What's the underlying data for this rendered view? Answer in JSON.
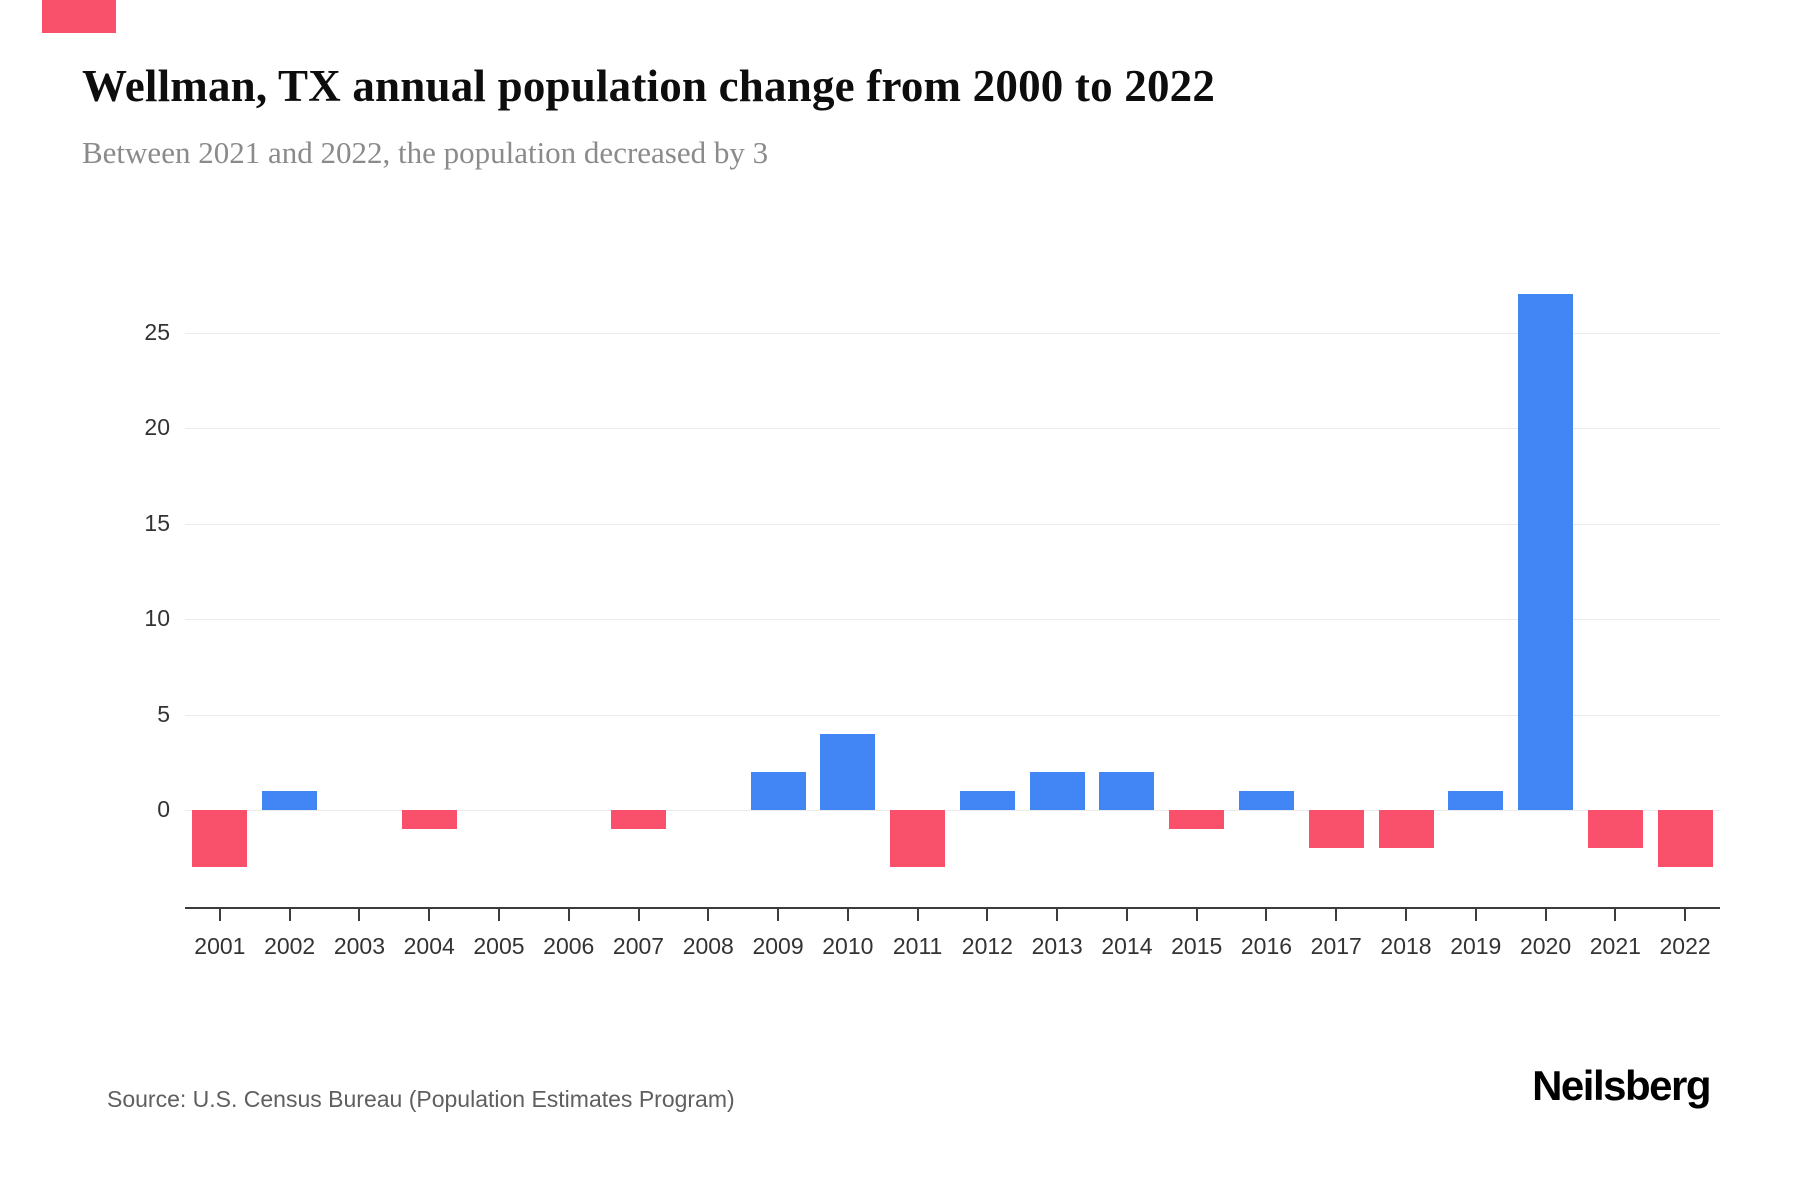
{
  "accent_color": "#f9506b",
  "header": {
    "title": "Wellman, TX annual population change from 2000 to 2022",
    "subtitle": "Between 2021 and 2022, the population decreased by 3"
  },
  "footer": {
    "source": "Source: U.S. Census Bureau (Population Estimates Program)",
    "brand": "Neilsberg"
  },
  "chart_data": {
    "type": "bar",
    "title": "Wellman, TX annual population change from 2000 to 2022",
    "subtitle": "Between 2021 and 2022, the population decreased by 3",
    "categories": [
      "2001",
      "2002",
      "2003",
      "2004",
      "2005",
      "2006",
      "2007",
      "2008",
      "2009",
      "2010",
      "2011",
      "2012",
      "2013",
      "2014",
      "2015",
      "2016",
      "2017",
      "2018",
      "2019",
      "2020",
      "2021",
      "2022"
    ],
    "values": [
      -3,
      1,
      0,
      -1,
      0,
      0,
      -1,
      0,
      2,
      4,
      -3,
      1,
      2,
      2,
      -1,
      1,
      -2,
      -2,
      1,
      27,
      -2,
      -3
    ],
    "xlabel": "",
    "ylabel": "",
    "yticks": [
      0,
      5,
      10,
      15,
      20,
      25
    ],
    "ylim": [
      -5,
      28
    ],
    "grid": "horizontal",
    "legend": "none",
    "positive_color": "#4285f4",
    "negative_color": "#f9506b",
    "source": "Source: U.S. Census Bureau (Population Estimates Program)"
  }
}
